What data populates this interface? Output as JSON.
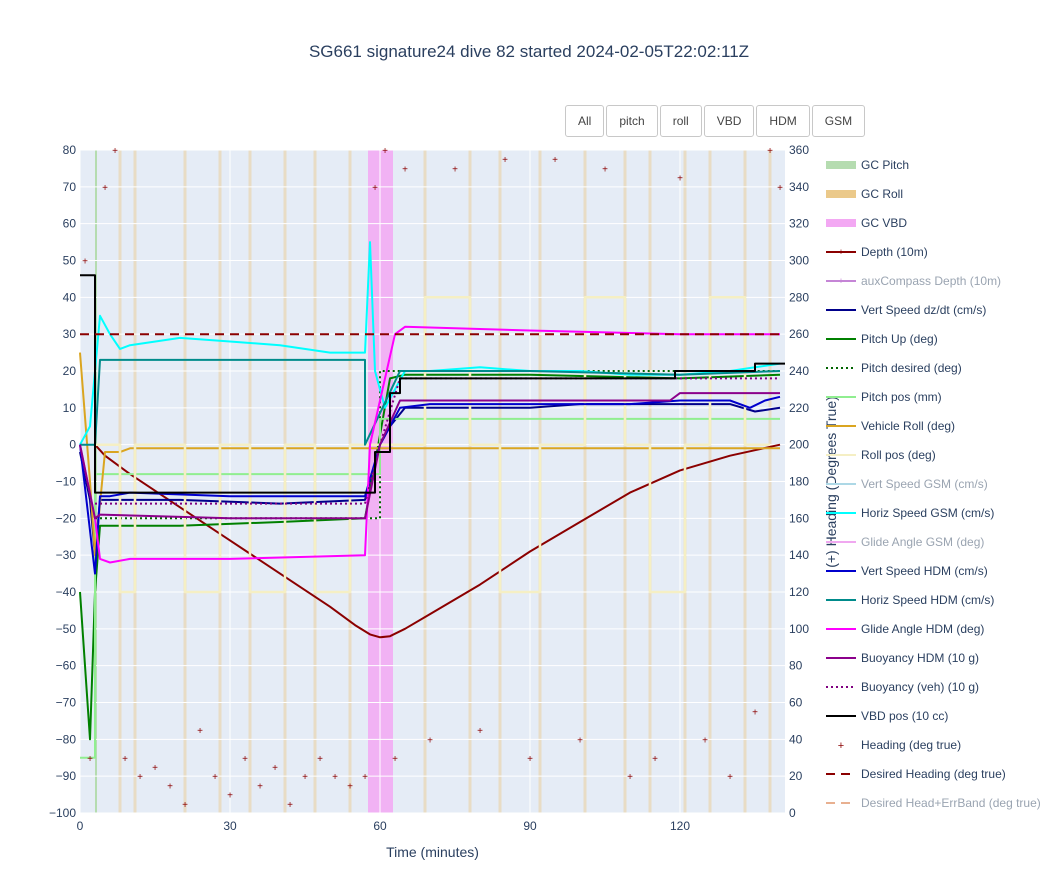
{
  "chart_data": {
    "type": "line",
    "title": "SG661 signature24 dive 82 started 2024-02-05T22:02:11Z",
    "xlabel": "Time (minutes)",
    "ylabel": "",
    "y2label": "(+) Heading (Degrees True)",
    "xlim": [
      0,
      141
    ],
    "ylim": [
      -100,
      80
    ],
    "y2lim": [
      0,
      360
    ],
    "xticks": [
      0,
      30,
      60,
      90,
      120
    ],
    "yticks": [
      -100,
      -90,
      -80,
      -70,
      -60,
      -50,
      -40,
      -30,
      -20,
      -10,
      0,
      10,
      20,
      30,
      40,
      50,
      60,
      70,
      80
    ],
    "y2ticks": [
      0,
      20,
      40,
      60,
      80,
      100,
      120,
      140,
      160,
      180,
      200,
      220,
      240,
      260,
      280,
      300,
      320,
      340,
      360
    ],
    "grid": true,
    "legend_position": "right",
    "buttons": [
      "All",
      "pitch",
      "roll",
      "VBD",
      "HDM",
      "GSM"
    ],
    "series": [
      {
        "name": "GC Pitch",
        "color": "#b5dcb0",
        "style": "band",
        "x": [
          3.0,
          3.2
        ]
      },
      {
        "name": "GC Roll",
        "color": "#ebc98a",
        "style": "band",
        "x": [
          8,
          11,
          21,
          28,
          34,
          41,
          47,
          54,
          69,
          78,
          84,
          92,
          101,
          109,
          114,
          121,
          126,
          133,
          138
        ]
      },
      {
        "name": "GC VBD",
        "color": "#f3a8f3",
        "style": "band",
        "x": [
          57.6,
          62.6
        ]
      },
      {
        "name": "Depth (10m)",
        "color": "#8b0000",
        "style": "line",
        "x": [
          3,
          5,
          10,
          20,
          30,
          40,
          50,
          55,
          58,
          60,
          62,
          65,
          70,
          80,
          90,
          100,
          110,
          120,
          130,
          135,
          140
        ],
        "y": [
          0,
          -3,
          -8,
          -17,
          -26,
          -35,
          -44,
          -49,
          -51.5,
          -52.3,
          -52,
          -50,
          -46,
          -38,
          -29,
          -21,
          -13,
          -7,
          -3,
          -1.5,
          0
        ]
      },
      {
        "name": "auxCompass Depth (10m)",
        "color": "#c585d6",
        "style": "line",
        "muted": true,
        "x": [],
        "y": []
      },
      {
        "name": "Vert Speed dz/dt (cm/s)",
        "color": "#00008b",
        "style": "line",
        "x": [
          0,
          2,
          3,
          4,
          8,
          20,
          40,
          57,
          60,
          62,
          65,
          70,
          90,
          100,
          110,
          120,
          130,
          135,
          140
        ],
        "y": [
          -2,
          -15,
          -30,
          -15,
          -15,
          -15,
          -16,
          -15,
          0,
          5,
          10,
          10,
          10,
          11,
          11,
          11,
          11,
          9,
          10
        ]
      },
      {
        "name": "Pitch Up (deg)",
        "color": "#008000",
        "style": "line",
        "x": [
          0,
          1,
          2,
          3,
          4,
          8,
          20,
          40,
          57,
          59,
          62,
          65,
          90,
          120,
          140
        ],
        "y": [
          -40,
          -60,
          -80,
          -40,
          -22,
          -22,
          -22,
          -21,
          -20,
          -5,
          18,
          19,
          19,
          18,
          19
        ]
      },
      {
        "name": "Pitch desired (deg)",
        "color": "#006400",
        "style": "dotted",
        "x": [
          3,
          4,
          60,
          60,
          62,
          140
        ],
        "y": [
          -20,
          -20,
          -20,
          20,
          20,
          20
        ]
      },
      {
        "name": "Pitch pos (mm)",
        "color": "#90ee90",
        "style": "line",
        "x": [
          0,
          3,
          3,
          60,
          60,
          140
        ],
        "y": [
          -85,
          -85,
          -8,
          -8,
          7,
          7
        ]
      },
      {
        "name": "Vehicle Roll (deg)",
        "color": "#daa520",
        "style": "line",
        "x": [
          0,
          2,
          3,
          5,
          8,
          10,
          20,
          30,
          40,
          50,
          57,
          60,
          65,
          80,
          100,
          120,
          135,
          140
        ],
        "y": [
          25,
          -10,
          -30,
          -2,
          -2,
          -1,
          -1,
          -1,
          -1,
          -1,
          -1,
          -1,
          -1,
          -1,
          -1,
          -1,
          -1,
          -1
        ]
      },
      {
        "name": "Roll pos (deg)",
        "color": "#f5efc4",
        "style": "line",
        "muted": false,
        "x": [
          3,
          8,
          8,
          11,
          11,
          21,
          21,
          28,
          28,
          34,
          34,
          41,
          41,
          47,
          47,
          54,
          54,
          69,
          69,
          78,
          78,
          84,
          84,
          92,
          92,
          101,
          101,
          109,
          109,
          114,
          114,
          121,
          121,
          126,
          126,
          133,
          133,
          138
        ],
        "y": [
          0,
          0,
          -40,
          -40,
          0,
          0,
          -40,
          -40,
          0,
          0,
          -40,
          -40,
          0,
          0,
          -40,
          -40,
          0,
          0,
          40,
          40,
          0,
          0,
          -40,
          -40,
          0,
          0,
          40,
          40,
          0,
          0,
          -40,
          -40,
          0,
          0,
          40,
          40,
          0,
          0
        ]
      },
      {
        "name": "Vert Speed GSM (cm/s)",
        "color": "#add8e6",
        "style": "line",
        "muted": true,
        "x": [],
        "y": []
      },
      {
        "name": "Horiz Speed GSM (cm/s)",
        "color": "#00ffff",
        "style": "line",
        "x": [
          0,
          2,
          4,
          6,
          8,
          10,
          20,
          30,
          40,
          50,
          57,
          58,
          59,
          61,
          63,
          65,
          70,
          80,
          90,
          100,
          110,
          120,
          130,
          135,
          140
        ],
        "y": [
          0,
          5,
          35,
          30,
          26,
          27,
          29,
          28,
          27,
          25,
          25,
          55,
          20,
          10,
          15,
          20,
          20,
          21,
          20,
          20,
          19,
          19,
          20,
          21,
          22
        ]
      },
      {
        "name": "Glide Angle GSM (deg)",
        "color": "#f0a8f0",
        "style": "line",
        "muted": true,
        "x": [],
        "y": []
      },
      {
        "name": "Vert Speed HDM (cm/s)",
        "color": "#0000cd",
        "style": "line",
        "x": [
          0,
          3,
          4,
          6,
          10,
          30,
          57,
          60,
          64,
          70,
          90,
          110,
          120,
          130,
          134,
          137,
          140
        ],
        "y": [
          0,
          -35,
          -14,
          -14,
          -13,
          -14,
          -14,
          0,
          10,
          11,
          11,
          11,
          12,
          12,
          10,
          12,
          13
        ]
      },
      {
        "name": "Horiz Speed HDM (cm/s)",
        "color": "#008b8b",
        "style": "line",
        "x": [
          0,
          3,
          4,
          30,
          57,
          57,
          64,
          90,
          120,
          140
        ],
        "y": [
          0,
          0,
          23,
          23,
          23,
          0,
          20,
          20,
          19,
          20
        ]
      },
      {
        "name": "Glide Angle HDM (deg)",
        "color": "#ff00ff",
        "style": "line",
        "x": [
          0,
          3,
          4,
          6,
          10,
          30,
          57,
          58,
          63,
          65,
          90,
          120,
          140
        ],
        "y": [
          0,
          -20,
          -31,
          -32,
          -31,
          -31,
          -30,
          0,
          30,
          32,
          31,
          30,
          30
        ]
      },
      {
        "name": "Buoyancy HDM (10 g)",
        "color": "#8b008b",
        "style": "line",
        "x": [
          0,
          3,
          4,
          30,
          57,
          60,
          64,
          90,
          118,
          120,
          140
        ],
        "y": [
          0,
          -20,
          -19,
          -20,
          -20,
          0,
          12,
          12,
          12,
          14,
          14
        ]
      },
      {
        "name": "Buoyancy (veh) (10 g)",
        "color": "#800080",
        "style": "dotted",
        "x": [
          3,
          4,
          57,
          60,
          64,
          140
        ],
        "y": [
          -16,
          -16,
          -16,
          0,
          18,
          18
        ]
      },
      {
        "name": "VBD pos (10 cc)",
        "color": "#000000",
        "style": "step",
        "x": [
          0,
          3,
          3,
          59,
          59,
          62,
          62,
          64,
          64,
          119,
          119,
          135,
          135,
          141
        ],
        "y": [
          46,
          46,
          -13,
          -13,
          -2,
          -2,
          14,
          14,
          18,
          18,
          20,
          20,
          22,
          22
        ]
      },
      {
        "name": "Heading (deg true)",
        "color": "#8b0000",
        "style": "markers",
        "x": [
          1,
          2,
          5,
          7,
          9,
          12,
          15,
          18,
          21,
          24,
          27,
          30,
          33,
          36,
          39,
          42,
          45,
          48,
          51,
          54,
          57,
          59,
          61,
          63,
          65,
          70,
          75,
          80,
          85,
          90,
          95,
          100,
          105,
          110,
          115,
          120,
          125,
          130,
          135,
          138,
          140
        ],
        "y2": [
          300,
          30,
          340,
          360,
          30,
          20,
          25,
          15,
          5,
          45,
          20,
          10,
          30,
          15,
          25,
          5,
          20,
          30,
          20,
          15,
          20,
          340,
          360,
          30,
          350,
          40,
          350,
          45,
          355,
          30,
          355,
          40,
          350,
          20,
          30,
          345,
          40,
          20,
          55,
          360,
          340
        ]
      },
      {
        "name": "Desired Heading (deg true)",
        "color": "#8b0000",
        "style": "dashed",
        "x": [
          0,
          141
        ],
        "y2": [
          260,
          260
        ]
      },
      {
        "name": "Desired Head+ErrBand (deg true)",
        "color": "#e8b090",
        "style": "dashed",
        "muted": true,
        "x": [],
        "y2": []
      }
    ]
  }
}
